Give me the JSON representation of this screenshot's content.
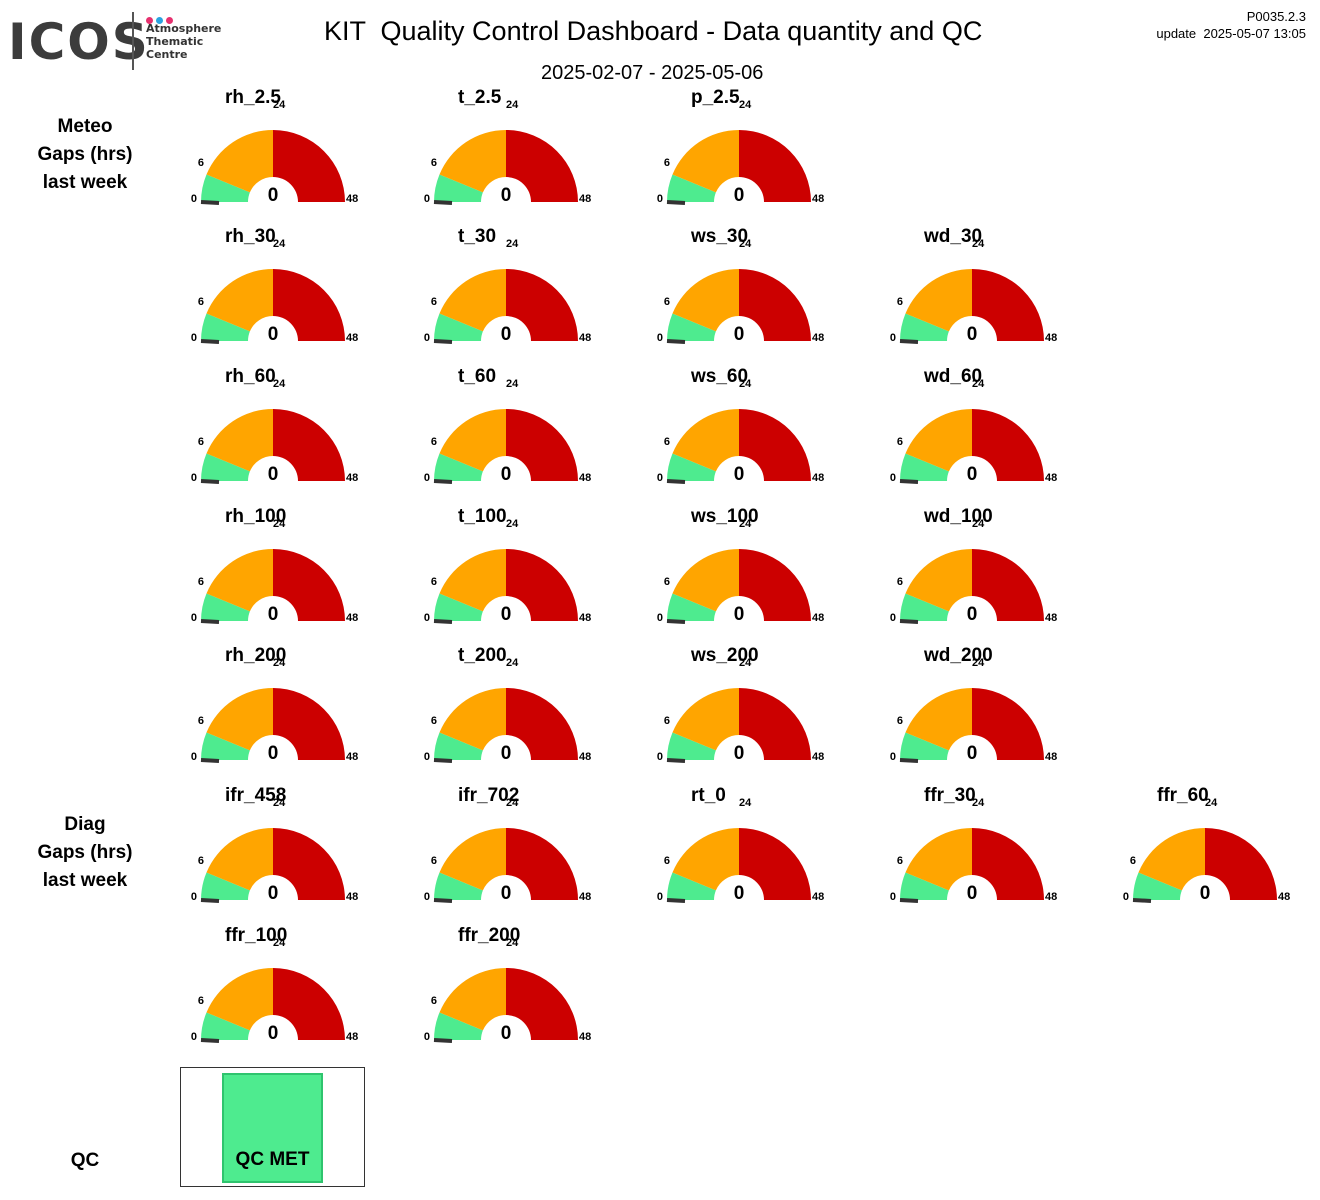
{
  "header": {
    "logo": {
      "wordmark": "ICOS",
      "lines": [
        "Atmosphere",
        "Thematic",
        "Centre"
      ],
      "dot_colors": [
        "#e6306e",
        "#2aa3e0",
        "#e6306e"
      ]
    },
    "title": "KIT  Quality Control Dashboard - Data quantity and QC",
    "date_range": "2025-02-07 - 2025-05-06",
    "version": "P0035.2.3",
    "update": "update  2025-05-07 13:05"
  },
  "sections": [
    {
      "id": "meteo",
      "lines": [
        "Meteo",
        "Gaps (hrs)",
        "last week"
      ]
    },
    {
      "id": "diag",
      "lines": [
        "Diag",
        "Gaps (hrs)",
        "last week"
      ]
    },
    {
      "id": "qc",
      "lines": [
        "QC"
      ]
    }
  ],
  "gauge_scale": {
    "min": 0,
    "max": 48,
    "ticks": [
      "0",
      "6",
      "24",
      "48"
    ],
    "bands": [
      {
        "from": 0,
        "to": 6,
        "color": "#4eeb8f"
      },
      {
        "from": 6,
        "to": 24,
        "color": "#ffa500"
      },
      {
        "from": 24,
        "to": 48,
        "color": "#cc0000"
      }
    ],
    "needle_color": "#333333"
  },
  "gauges": [
    [
      {
        "name": "rh_2.5",
        "value": 0
      },
      {
        "name": "t_2.5",
        "value": 0
      },
      {
        "name": "p_2.5",
        "value": 0
      }
    ],
    [
      {
        "name": "rh_30",
        "value": 0
      },
      {
        "name": "t_30",
        "value": 0
      },
      {
        "name": "ws_30",
        "value": 0
      },
      {
        "name": "wd_30",
        "value": 0
      }
    ],
    [
      {
        "name": "rh_60",
        "value": 0
      },
      {
        "name": "t_60",
        "value": 0
      },
      {
        "name": "ws_60",
        "value": 0
      },
      {
        "name": "wd_60",
        "value": 0
      }
    ],
    [
      {
        "name": "rh_100",
        "value": 0
      },
      {
        "name": "t_100",
        "value": 0
      },
      {
        "name": "ws_100",
        "value": 0
      },
      {
        "name": "wd_100",
        "value": 0
      }
    ],
    [
      {
        "name": "rh_200",
        "value": 0
      },
      {
        "name": "t_200",
        "value": 0
      },
      {
        "name": "ws_200",
        "value": 0
      },
      {
        "name": "wd_200",
        "value": 0
      }
    ],
    [
      {
        "name": "ifr_458",
        "value": 0
      },
      {
        "name": "ifr_702",
        "value": 0
      },
      {
        "name": "rt_0",
        "value": 0
      },
      {
        "name": "ffr_30",
        "value": 0
      },
      {
        "name": "ffr_60",
        "value": 0
      }
    ],
    [
      {
        "name": "ffr_100",
        "value": 0
      },
      {
        "name": "ffr_200",
        "value": 0
      }
    ]
  ],
  "qc": {
    "label": "QC MET",
    "color": "#4eeb8f"
  }
}
